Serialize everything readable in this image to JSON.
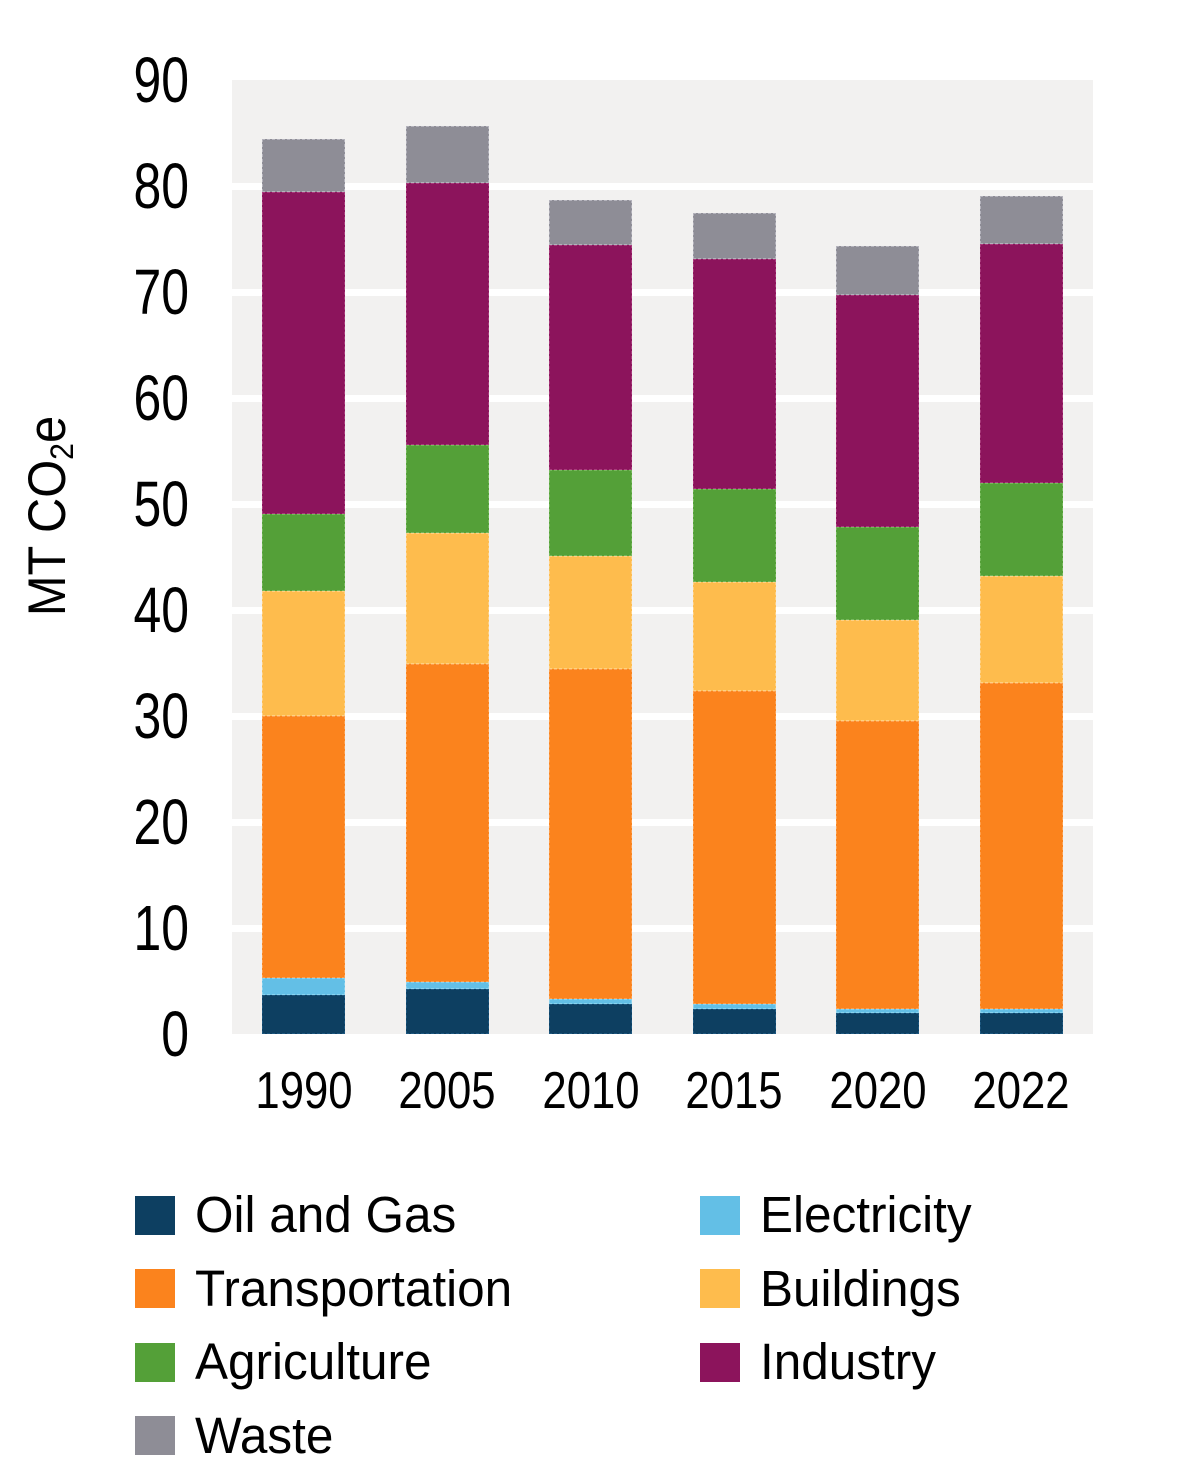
{
  "axis_title": {
    "main": "MT CO",
    "sub": "2",
    "tail": "e"
  },
  "chart_data": {
    "type": "bar",
    "stacked": true,
    "title": "",
    "xlabel": "",
    "ylabel": "MT CO2e",
    "categories": [
      "1990",
      "2005",
      "2010",
      "2015",
      "2020",
      "2022"
    ],
    "series": [
      {
        "name": "Oil and Gas",
        "color": "#0d3f61",
        "edge": "#1c567e",
        "values": [
          3.7,
          4.2,
          2.8,
          2.4,
          2.0,
          2.0
        ]
      },
      {
        "name": "Electricity",
        "color": "#63bfe6",
        "edge": "#8ad2ee",
        "values": [
          1.6,
          0.7,
          0.5,
          0.4,
          0.4,
          0.4
        ]
      },
      {
        "name": "Transportation",
        "color": "#fb831d",
        "edge": "#fda04f",
        "values": [
          24.7,
          30.0,
          31.1,
          29.6,
          27.1,
          30.7
        ]
      },
      {
        "name": "Buildings",
        "color": "#febc4d",
        "edge": "#ffd084",
        "values": [
          11.8,
          12.4,
          10.7,
          10.2,
          9.6,
          10.1
        ]
      },
      {
        "name": "Agriculture",
        "color": "#54a038",
        "edge": "#76b85c",
        "values": [
          7.3,
          8.3,
          8.1,
          8.8,
          8.7,
          8.8
        ]
      },
      {
        "name": "Industry",
        "color": "#8c145c",
        "edge": "#a93b7c",
        "values": [
          30.3,
          24.7,
          21.2,
          21.7,
          21.9,
          22.5
        ]
      },
      {
        "name": "Waste",
        "color": "#8e8d96",
        "edge": "#b4b3bc",
        "values": [
          5.0,
          5.4,
          4.3,
          4.4,
          4.6,
          4.6
        ]
      }
    ],
    "totals": [
      84.4,
      85.7,
      78.7,
      77.5,
      74.3,
      79.1
    ],
    "ylim": [
      0,
      90
    ],
    "yticks": [
      0,
      10,
      20,
      30,
      40,
      50,
      60,
      70,
      80,
      90
    ],
    "grid": true,
    "panel_color": "#f2f1f0",
    "gridline_color": "#ffffff",
    "legend_position": "bottom",
    "legend_columns": 2
  }
}
